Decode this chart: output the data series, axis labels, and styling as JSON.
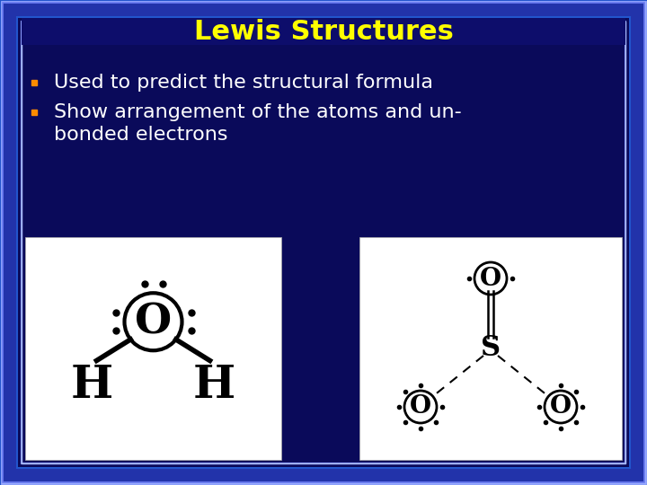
{
  "title": "Lewis Structures",
  "title_color": "#FFFF00",
  "title_fontsize": 22,
  "bg_outer": "#2255CC",
  "bg_inner": "#0a0a5a",
  "text_color": "#FFFFFF",
  "text_fontsize": 16,
  "bullet_color": "#FF8C00",
  "bullets": [
    "Used to predict the structural formula",
    "Show arrangement of the atoms and un-",
    "bonded electrons"
  ]
}
